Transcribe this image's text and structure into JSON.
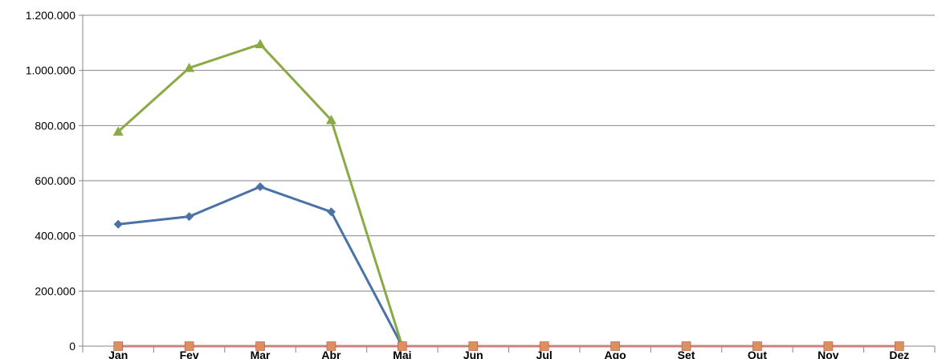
{
  "chart_data": {
    "type": "line",
    "categories": [
      "Jan",
      "Fev",
      "Mar",
      "Abr",
      "Mai",
      "Jun",
      "Jul",
      "Ago",
      "Set",
      "Out",
      "Nov",
      "Dez"
    ],
    "series": [
      {
        "values": [
          442000,
          470000,
          578000,
          487000,
          0,
          null,
          null,
          null,
          null,
          null,
          null,
          null
        ],
        "color": "#4A72A8",
        "marker": "diamond"
      },
      {
        "values": [
          0,
          0,
          0,
          0,
          0,
          0,
          0,
          0,
          0,
          0,
          0,
          0
        ],
        "color": "#C9837F",
        "marker": "square",
        "marker_color": "#D9915D"
      },
      {
        "values": [
          778000,
          1009000,
          1095000,
          820000,
          0,
          null,
          null,
          null,
          null,
          null,
          null,
          null
        ],
        "color": "#8AAA46",
        "marker": "triangle"
      }
    ],
    "ylim": [
      0,
      1200000
    ],
    "yticks": [
      0,
      200000,
      400000,
      600000,
      800000,
      1000000,
      1200000
    ],
    "ytick_labels": [
      "0",
      "200.000",
      "400.000",
      "600.000",
      "800.000",
      "1.000.000",
      "1.200.000"
    ],
    "grid": true,
    "title": "",
    "xlabel": "",
    "ylabel": ""
  }
}
